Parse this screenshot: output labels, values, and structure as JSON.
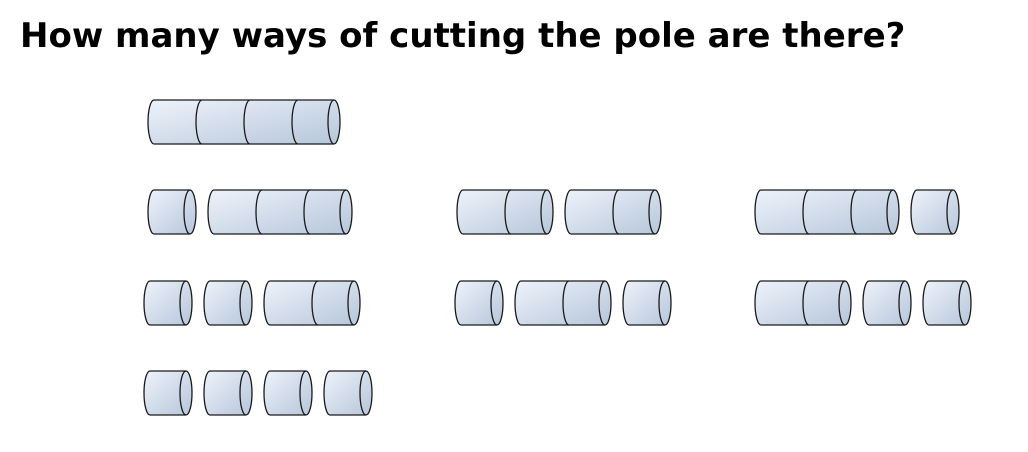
{
  "title": "How many ways of cutting the pole are there?",
  "colors": {
    "segment_fill_light": "#eef3fa",
    "segment_fill_dark": "#b6c6db",
    "segment_stroke": "#1a1a1a"
  },
  "icon": "pole-segment",
  "pole_length": 4,
  "cuttings": [
    [
      4
    ],
    [
      1,
      3
    ],
    [
      2,
      2
    ],
    [
      3,
      1
    ],
    [
      1,
      1,
      2
    ],
    [
      1,
      2,
      1
    ],
    [
      2,
      1,
      1
    ],
    [
      1,
      1,
      1,
      1
    ]
  ]
}
